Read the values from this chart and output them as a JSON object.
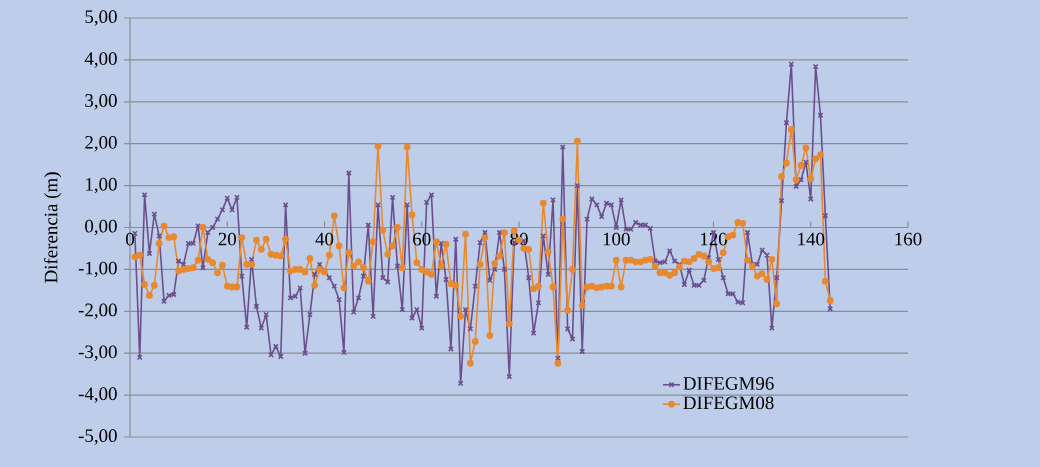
{
  "chart_data": {
    "type": "line",
    "ylabel": "Diferencia   (m)",
    "x": [
      1,
      2,
      3,
      4,
      5,
      6,
      7,
      8,
      9,
      10,
      11,
      12,
      13,
      14,
      15,
      16,
      17,
      18,
      19,
      20,
      21,
      22,
      23,
      24,
      25,
      26,
      27,
      28,
      29,
      30,
      31,
      32,
      33,
      34,
      35,
      36,
      37,
      38,
      39,
      40,
      41,
      42,
      43,
      44,
      45,
      46,
      47,
      48,
      49,
      50,
      51,
      52,
      53,
      54,
      55,
      56,
      57,
      58,
      59,
      60,
      61,
      62,
      63,
      64,
      65,
      66,
      67,
      68,
      69,
      70,
      71,
      72,
      73,
      74,
      75,
      76,
      77,
      78,
      79,
      80,
      81,
      82,
      83,
      84,
      85,
      86,
      87,
      88,
      89,
      90,
      91,
      92,
      93,
      94,
      95,
      96,
      97,
      98,
      99,
      100,
      101,
      102,
      103,
      104,
      105,
      106,
      107,
      108,
      109,
      110,
      111,
      112,
      113,
      114,
      115,
      116,
      117,
      118,
      119,
      120,
      121,
      122,
      123,
      124,
      125,
      126,
      127,
      128,
      129,
      130,
      131,
      132,
      133,
      134,
      135,
      136,
      137,
      138,
      139,
      140,
      141,
      142,
      143,
      144
    ],
    "series": [
      {
        "name": "DIFEGM96",
        "color": "#6b4f8c",
        "marker": "cross",
        "values": [
          -0.14,
          -3.1,
          0.78,
          -0.62,
          0.32,
          -0.2,
          -1.76,
          -1.62,
          -1.6,
          -0.8,
          -0.88,
          -0.38,
          -0.38,
          0.04,
          -0.96,
          -0.12,
          0,
          0.2,
          0.42,
          0.7,
          0.42,
          0.72,
          -1.16,
          -2.38,
          -0.76,
          -1.88,
          -2.4,
          -2.08,
          -3.04,
          -2.84,
          -3.08,
          0.54,
          -1.68,
          -1.64,
          -1.44,
          -3.0,
          -2.08,
          -1.12,
          -0.88,
          -1.04,
          -1.2,
          -1.4,
          -1.72,
          -2.98,
          1.3,
          -2.02,
          -1.68,
          -1.16,
          0.06,
          -2.12,
          0.54,
          -1.2,
          -1.3,
          0.72,
          -0.92,
          -1.96,
          0.54,
          -2.16,
          -1.96,
          -2.4,
          0.6,
          0.78,
          -1.64,
          -0.38,
          -1.24,
          -2.9,
          -0.28,
          -3.72,
          -1.96,
          -2.42,
          -1.4,
          -0.36,
          -0.12,
          -1.26,
          -1.0,
          -0.12,
          -1.0,
          -3.56,
          -0.36,
          -0.3,
          -0.32,
          -1.2,
          -2.52,
          -1.8,
          -0.2,
          -1.12,
          0.66,
          -3.12,
          1.92,
          -2.42,
          -2.66,
          1.0,
          -2.96,
          0.2,
          0.68,
          0.54,
          0.26,
          0.58,
          0.54,
          0,
          0.66,
          -0.04,
          -0.04,
          0.12,
          0.06,
          0.06,
          -0.02,
          -0.8,
          -0.84,
          -0.82,
          -0.56,
          -0.8,
          -0.88,
          -1.36,
          -1.02,
          -1.38,
          -1.38,
          -1.26,
          -0.72,
          -0.12,
          -0.76,
          -1.2,
          -1.58,
          -1.58,
          -1.78,
          -1.8,
          -0.12,
          -0.88,
          -0.88,
          -0.54,
          -0.66,
          -2.4,
          -1.2,
          0.64,
          2.5,
          3.9,
          0.98,
          1.14,
          1.56,
          0.68,
          3.84,
          2.68,
          0.28,
          -1.94
        ]
      },
      {
        "name": "DIFEGM08",
        "color": "#e8892f",
        "marker": "circle",
        "values": [
          -0.7,
          -0.66,
          -1.36,
          -1.62,
          -1.38,
          -0.38,
          0.04,
          -0.24,
          -0.22,
          -1.04,
          -1.0,
          -0.98,
          -0.96,
          -0.78,
          0,
          -0.76,
          -0.84,
          -1.08,
          -0.9,
          -1.4,
          -1.42,
          -1.42,
          -0.24,
          -0.88,
          -0.88,
          -0.3,
          -0.52,
          -0.28,
          -0.64,
          -0.66,
          -0.68,
          -0.28,
          -1.04,
          -1.0,
          -1.0,
          -1.06,
          -0.74,
          -1.38,
          -1.0,
          -1.06,
          -0.66,
          0.28,
          -0.44,
          -1.44,
          -0.6,
          -0.92,
          -0.82,
          -0.96,
          -1.28,
          -0.34,
          1.94,
          -0.06,
          -0.64,
          -0.44,
          0,
          -0.96,
          1.92,
          0.3,
          -0.84,
          -1.0,
          -1.06,
          -1.12,
          -0.34,
          -0.92,
          -0.4,
          -1.34,
          -1.38,
          -2.12,
          -0.16,
          -3.24,
          -2.72,
          -0.88,
          -0.24,
          -2.58,
          -0.86,
          -0.68,
          -0.12,
          -2.3,
          -0.08,
          -0.3,
          -0.5,
          -0.52,
          -1.46,
          -1.4,
          0.58,
          -0.58,
          -1.42,
          -3.24,
          0.2,
          -1.98,
          -1.0,
          2.06,
          -1.86,
          -1.42,
          -1.4,
          -1.44,
          -1.42,
          -1.4,
          -1.4,
          -0.78,
          -1.42,
          -0.78,
          -0.78,
          -0.82,
          -0.82,
          -0.78,
          -0.76,
          -0.92,
          -1.08,
          -1.08,
          -1.14,
          -1.08,
          -0.94,
          -0.8,
          -0.82,
          -0.74,
          -0.64,
          -0.68,
          -0.82,
          -0.98,
          -0.96,
          -0.6,
          -0.22,
          -0.18,
          0.12,
          0.1,
          -0.78,
          -0.92,
          -1.16,
          -1.1,
          -1.24,
          -0.76,
          -1.82,
          1.22,
          1.54,
          2.34,
          1.14,
          1.48,
          1.9,
          1.16,
          1.64,
          1.74,
          -1.28,
          -1.74
        ]
      }
    ],
    "xlim": [
      0,
      160
    ],
    "xticks": [
      0,
      20,
      40,
      60,
      80,
      100,
      120,
      140,
      160
    ],
    "ylim": [
      -5,
      5
    ],
    "yticks": [
      {
        "value": -5,
        "label": "-5,00"
      },
      {
        "value": -4,
        "label": "-4,00"
      },
      {
        "value": -3,
        "label": "-3,00"
      },
      {
        "value": -2,
        "label": "-2,00"
      },
      {
        "value": -1,
        "label": "-1,00"
      },
      {
        "value": 0,
        "label": "0,00"
      },
      {
        "value": 1,
        "label": "1,00"
      },
      {
        "value": 2,
        "label": "2,00"
      },
      {
        "value": 3,
        "label": "3,00"
      },
      {
        "value": 4,
        "label": "4,00"
      },
      {
        "value": 5,
        "label": "5,00"
      }
    ],
    "grid": "y",
    "legend": "bottom right"
  }
}
